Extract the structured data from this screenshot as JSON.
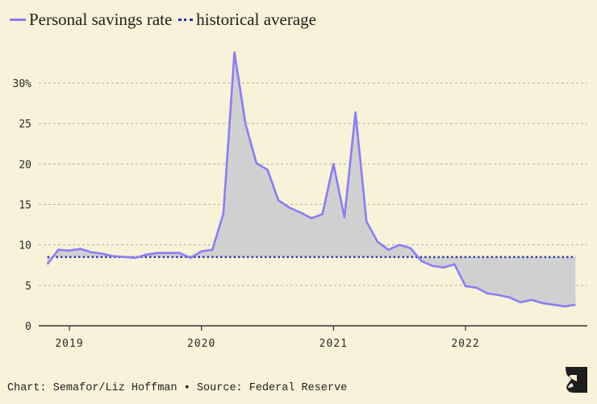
{
  "legend": {
    "items": [
      {
        "label": "Personal savings rate",
        "style": "solid",
        "color": "#8b7cf6"
      },
      {
        "label": "historical average",
        "style": "dotted",
        "color": "#1f2bb3"
      }
    ]
  },
  "footer": {
    "credit": "Chart: Semafor/Liz Hoffman • Source: Federal Reserve"
  },
  "logo": {
    "name": "semafor-logo"
  },
  "colors": {
    "background": "#f8f2d8",
    "line": "#8b7cf6",
    "average": "#1f2bb3",
    "fill": "#d0d0d0",
    "grid": "#b5b0a0",
    "axis": "#333333"
  },
  "chart_data": {
    "type": "line",
    "title": "",
    "xlabel": "",
    "ylabel": "",
    "ylim": [
      0,
      30
    ],
    "y_ticks": [
      {
        "value": 0,
        "label": "0"
      },
      {
        "value": 5,
        "label": "5"
      },
      {
        "value": 10,
        "label": "10"
      },
      {
        "value": 15,
        "label": "15"
      },
      {
        "value": 20,
        "label": "20"
      },
      {
        "value": 25,
        "label": "25"
      },
      {
        "value": 30,
        "label": "30%"
      }
    ],
    "x_range": [
      "2018-10",
      "2022-12"
    ],
    "x_ticks": [
      {
        "value": "2019-01",
        "label": "2019"
      },
      {
        "value": "2020-01",
        "label": "2020"
      },
      {
        "value": "2021-01",
        "label": "2021"
      },
      {
        "value": "2022-01",
        "label": "2022"
      }
    ],
    "grid": true,
    "legend_position": "top-left",
    "series": [
      {
        "name": "Personal savings rate",
        "x": [
          "2018-11",
          "2018-12",
          "2019-01",
          "2019-02",
          "2019-03",
          "2019-04",
          "2019-05",
          "2019-06",
          "2019-07",
          "2019-08",
          "2019-09",
          "2019-10",
          "2019-11",
          "2019-12",
          "2020-01",
          "2020-02",
          "2020-03",
          "2020-04",
          "2020-05",
          "2020-06",
          "2020-07",
          "2020-08",
          "2020-09",
          "2020-10",
          "2020-11",
          "2020-12",
          "2021-01",
          "2021-02",
          "2021-03",
          "2021-04",
          "2021-05",
          "2021-06",
          "2021-07",
          "2021-08",
          "2021-09",
          "2021-10",
          "2021-11",
          "2021-12",
          "2022-01",
          "2022-02",
          "2022-03",
          "2022-04",
          "2022-05",
          "2022-06",
          "2022-07",
          "2022-08",
          "2022-09",
          "2022-10",
          "2022-11"
        ],
        "values": [
          7.6,
          9.4,
          9.3,
          9.5,
          9.1,
          8.9,
          8.6,
          8.5,
          8.4,
          8.8,
          9.0,
          9.0,
          9.0,
          8.4,
          9.2,
          9.4,
          13.9,
          33.8,
          25.0,
          20.1,
          19.3,
          15.5,
          14.6,
          14.0,
          13.3,
          13.8,
          20.0,
          13.4,
          26.4,
          12.9,
          10.4,
          9.4,
          10.0,
          9.6,
          8.0,
          7.4,
          7.2,
          7.6,
          4.9,
          4.7,
          4.0,
          3.8,
          3.5,
          2.9,
          3.2,
          2.8,
          2.6,
          2.4,
          2.6
        ]
      },
      {
        "name": "historical average",
        "value": 8.5
      }
    ]
  }
}
